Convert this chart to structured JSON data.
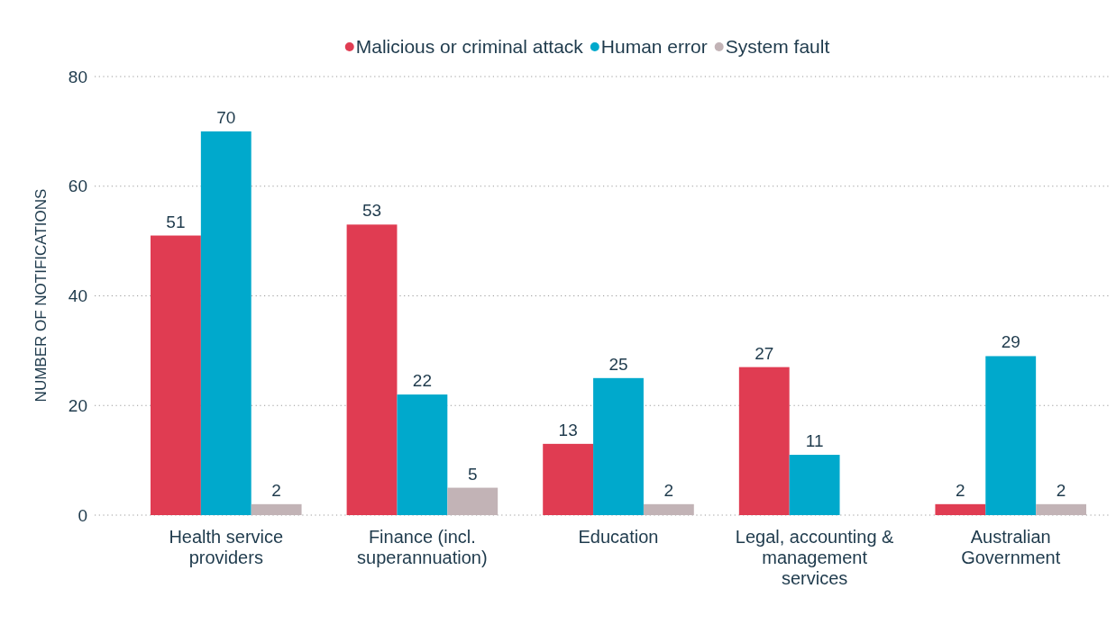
{
  "chart_data": {
    "type": "bar",
    "categories": [
      "Health service providers",
      "Finance (incl. superannuation)",
      "Education",
      "Legal, accounting & management services",
      "Australian Government"
    ],
    "series": [
      {
        "name": "Malicious or criminal attack",
        "color": "#e03c52",
        "values": [
          51,
          53,
          13,
          27,
          2
        ]
      },
      {
        "name": "Human error",
        "color": "#00a9cc",
        "values": [
          70,
          22,
          25,
          11,
          29
        ]
      },
      {
        "name": "System fault",
        "color": "#c2b3b6",
        "values": [
          2,
          5,
          2,
          null,
          2
        ]
      }
    ],
    "ylabel": "NUMBER OF NOTIFICATIONS",
    "ylim": [
      0,
      80
    ],
    "yticks": [
      0,
      20,
      40,
      60,
      80
    ],
    "grid": "y",
    "legend": "top",
    "data_labels": true
  }
}
